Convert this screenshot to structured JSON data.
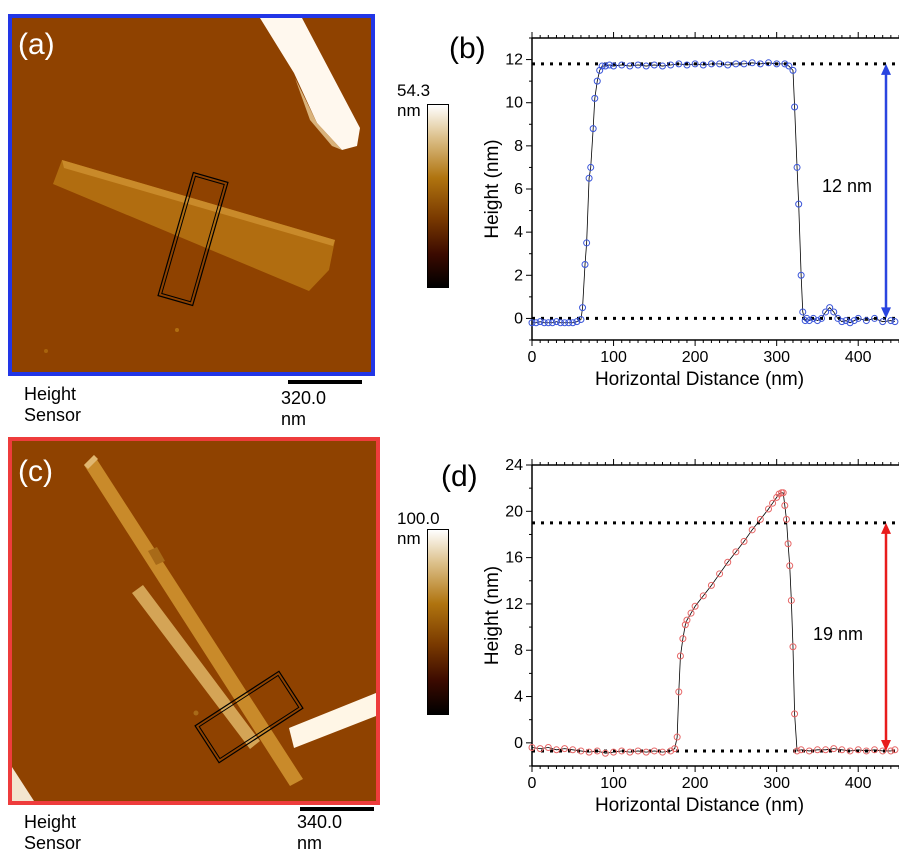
{
  "panels": {
    "a": {
      "label": "(a)",
      "caption": "Height Sensor",
      "scalebar": "320.0 nm",
      "colorbar_max": "54.3 nm",
      "frame_color": "#2236e6"
    },
    "c": {
      "label": "(c)",
      "caption": "Height Sensor",
      "scalebar": "340.0 nm",
      "colorbar_max": "100.0 nm",
      "frame_color": "#ee3c3c"
    }
  },
  "colormap": {
    "name": "afm-gold",
    "stops": [
      "#000000",
      "#3b0a00",
      "#7a3a00",
      "#b0740f",
      "#dcc08a",
      "#ffffff"
    ],
    "substrate_color": "#8f4200"
  },
  "chart_data": [
    {
      "type": "scatter",
      "panel_label": "(b)",
      "title": "",
      "xlabel": "Horizontal Distance (nm)",
      "ylabel": "Height (nm)",
      "xlim": [
        0,
        450
      ],
      "ylim": [
        -1,
        13
      ],
      "xticks": [
        0,
        100,
        200,
        300,
        400
      ],
      "yticks": [
        0,
        2,
        4,
        6,
        8,
        10,
        12
      ],
      "grid": false,
      "color": "#3a55d9",
      "reference_lines": [
        11.8,
        0
      ],
      "annotation": "12 nm",
      "arrow_span": [
        0,
        11.8
      ],
      "series": [
        {
          "x": [
            0,
            5,
            10,
            15,
            20,
            25,
            30,
            35,
            40,
            45,
            50,
            55,
            60,
            62,
            65,
            67,
            70,
            72,
            75,
            77,
            80,
            83,
            86,
            90,
            95,
            100,
            110,
            120,
            130,
            140,
            150,
            160,
            170,
            180,
            190,
            200,
            210,
            220,
            230,
            240,
            250,
            260,
            270,
            280,
            290,
            300,
            310,
            315,
            320,
            322,
            325,
            327,
            330,
            332,
            335,
            337,
            340,
            345,
            350,
            355,
            360,
            365,
            370,
            375,
            380,
            385,
            390,
            395,
            400,
            410,
            420,
            430,
            440,
            445
          ],
          "y": [
            -0.2,
            -0.2,
            -0.15,
            -0.2,
            -0.2,
            -0.2,
            -0.15,
            -0.2,
            -0.2,
            -0.2,
            -0.2,
            -0.15,
            -0.05,
            0.5,
            2.5,
            3.5,
            6.5,
            7.0,
            8.8,
            10.2,
            11.0,
            11.5,
            11.7,
            11.7,
            11.75,
            11.7,
            11.75,
            11.7,
            11.75,
            11.7,
            11.75,
            11.7,
            11.75,
            11.8,
            11.75,
            11.8,
            11.75,
            11.8,
            11.8,
            11.75,
            11.8,
            11.8,
            11.85,
            11.8,
            11.85,
            11.8,
            11.8,
            11.7,
            11.5,
            9.8,
            7.0,
            5.3,
            2.0,
            0.3,
            -0.1,
            0.0,
            -0.1,
            0.0,
            -0.1,
            0.0,
            0.3,
            0.5,
            0.3,
            0.0,
            -0.15,
            -0.1,
            -0.2,
            -0.1,
            0.0,
            -0.1,
            0.0,
            -0.15,
            -0.1,
            -0.15
          ]
        }
      ]
    },
    {
      "type": "scatter",
      "panel_label": "(d)",
      "title": "",
      "xlabel": "Horizontal Distance (nm)",
      "ylabel": "Height (nm)",
      "xlim": [
        0,
        450
      ],
      "ylim": [
        -2,
        24
      ],
      "xticks": [
        0,
        100,
        200,
        300,
        400
      ],
      "yticks": [
        0,
        4,
        8,
        12,
        16,
        20,
        24
      ],
      "grid": false,
      "color": "#e76666",
      "reference_lines": [
        19,
        -0.7
      ],
      "annotation": "19 nm",
      "arrow_span": [
        -0.7,
        19
      ],
      "series": [
        {
          "x": [
            0,
            10,
            20,
            30,
            40,
            50,
            60,
            70,
            80,
            90,
            100,
            110,
            120,
            130,
            140,
            150,
            160,
            170,
            175,
            178,
            180,
            182,
            185,
            188,
            190,
            195,
            200,
            210,
            220,
            230,
            240,
            250,
            260,
            270,
            280,
            290,
            295,
            300,
            303,
            306,
            308,
            310,
            312,
            314,
            316,
            318,
            320,
            322,
            325,
            330,
            340,
            350,
            360,
            370,
            380,
            390,
            400,
            410,
            420,
            430,
            440,
            445
          ],
          "y": [
            -0.4,
            -0.5,
            -0.4,
            -0.6,
            -0.5,
            -0.6,
            -0.7,
            -0.8,
            -0.7,
            -0.9,
            -0.8,
            -0.7,
            -0.8,
            -0.7,
            -0.8,
            -0.7,
            -0.8,
            -0.7,
            -0.5,
            0.5,
            4.4,
            7.5,
            9.0,
            10.2,
            10.6,
            11.2,
            11.8,
            12.7,
            13.6,
            14.6,
            15.6,
            16.5,
            17.4,
            18.4,
            19.3,
            20.2,
            20.7,
            21.2,
            21.5,
            21.6,
            21.6,
            20.5,
            19.3,
            17.2,
            15.3,
            12.3,
            8.3,
            2.5,
            -0.7,
            -0.6,
            -0.7,
            -0.6,
            -0.6,
            -0.5,
            -0.6,
            -0.7,
            -0.6,
            -0.7,
            -0.6,
            -0.7,
            -0.7,
            -0.6
          ]
        }
      ]
    }
  ]
}
